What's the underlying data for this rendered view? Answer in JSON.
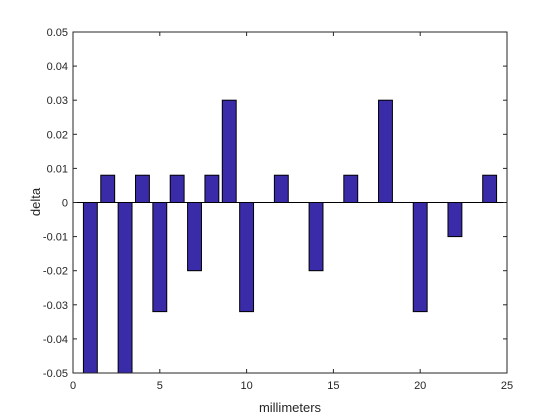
{
  "chart_data": {
    "type": "bar",
    "title": "",
    "xlabel": "millimeters",
    "ylabel": "delta",
    "xlim": [
      0,
      25
    ],
    "ylim": [
      -0.05,
      0.05
    ],
    "xticks": [
      0,
      5,
      10,
      15,
      20,
      25
    ],
    "xtick_labels": [
      "0",
      "5",
      "10",
      "15",
      "20",
      "25"
    ],
    "yticks": [
      -0.05,
      -0.04,
      -0.03,
      -0.02,
      -0.01,
      0,
      0.01,
      0.02,
      0.03,
      0.04,
      0.05
    ],
    "ytick_labels": [
      "-0.05",
      "-0.04",
      "-0.03",
      "-0.02",
      "-0.01",
      "0",
      "0.01",
      "0.02",
      "0.03",
      "0.04",
      "0.05"
    ],
    "grid": false,
    "bar_color": "#3a2ca8",
    "edge_color": "#000000",
    "baseline": 0,
    "x": [
      1,
      2,
      3,
      4,
      5,
      6,
      7,
      8,
      9,
      10,
      12,
      14,
      16,
      18,
      20,
      22,
      24
    ],
    "values": [
      -0.05,
      0.008,
      -0.05,
      0.008,
      -0.032,
      0.008,
      -0.02,
      0.008,
      0.03,
      -0.032,
      0.008,
      -0.02,
      0.008,
      0.03,
      -0.032,
      -0.01,
      0.008
    ]
  }
}
